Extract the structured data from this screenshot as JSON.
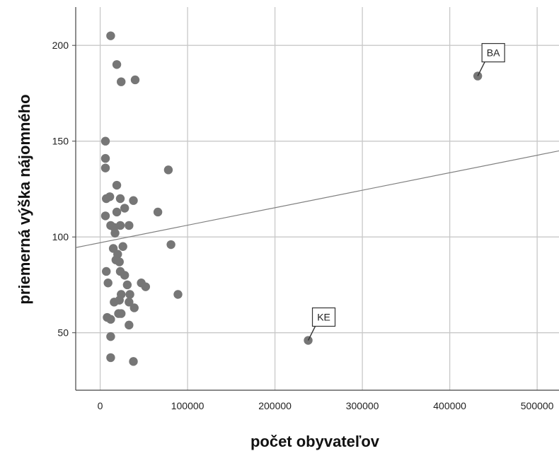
{
  "chart_data": {
    "type": "scatter",
    "xlabel": "počet obyvateľov",
    "ylabel": "priemerná výška nájomného",
    "xlim": [
      -28000,
      525000
    ],
    "ylim": [
      20,
      220
    ],
    "xticks": [
      0,
      100000,
      200000,
      300000,
      400000,
      500000
    ],
    "xtick_labels": [
      "0",
      "100000",
      "200000",
      "300000",
      "400000",
      "500000"
    ],
    "yticks": [
      50,
      100,
      150,
      200
    ],
    "ytick_labels": [
      "50",
      "100",
      "150",
      "200"
    ],
    "grid": true,
    "point_color": "#767676",
    "fit_line": {
      "intercept": 97,
      "slope": 9.13e-05
    },
    "points": [
      {
        "x": 12000,
        "y": 205
      },
      {
        "x": 19000,
        "y": 190
      },
      {
        "x": 24000,
        "y": 181
      },
      {
        "x": 40000,
        "y": 182
      },
      {
        "x": 6000,
        "y": 150
      },
      {
        "x": 6000,
        "y": 141
      },
      {
        "x": 6000,
        "y": 136
      },
      {
        "x": 19000,
        "y": 127
      },
      {
        "x": 7000,
        "y": 120
      },
      {
        "x": 11000,
        "y": 121
      },
      {
        "x": 23000,
        "y": 120
      },
      {
        "x": 19000,
        "y": 113
      },
      {
        "x": 28000,
        "y": 115
      },
      {
        "x": 38000,
        "y": 119
      },
      {
        "x": 6000,
        "y": 111
      },
      {
        "x": 12000,
        "y": 106
      },
      {
        "x": 16000,
        "y": 105
      },
      {
        "x": 23000,
        "y": 106
      },
      {
        "x": 33000,
        "y": 106
      },
      {
        "x": 17000,
        "y": 102
      },
      {
        "x": 66000,
        "y": 113
      },
      {
        "x": 78000,
        "y": 135
      },
      {
        "x": 15000,
        "y": 94
      },
      {
        "x": 26000,
        "y": 95
      },
      {
        "x": 20000,
        "y": 91
      },
      {
        "x": 18000,
        "y": 88
      },
      {
        "x": 22000,
        "y": 87
      },
      {
        "x": 81000,
        "y": 96
      },
      {
        "x": 7000,
        "y": 82
      },
      {
        "x": 23000,
        "y": 82
      },
      {
        "x": 28000,
        "y": 80
      },
      {
        "x": 9000,
        "y": 76
      },
      {
        "x": 31000,
        "y": 75
      },
      {
        "x": 47000,
        "y": 76
      },
      {
        "x": 52000,
        "y": 74
      },
      {
        "x": 24000,
        "y": 70
      },
      {
        "x": 34000,
        "y": 70
      },
      {
        "x": 89000,
        "y": 70
      },
      {
        "x": 22000,
        "y": 67
      },
      {
        "x": 16000,
        "y": 66
      },
      {
        "x": 33000,
        "y": 66
      },
      {
        "x": 39000,
        "y": 63
      },
      {
        "x": 21000,
        "y": 60
      },
      {
        "x": 24000,
        "y": 60
      },
      {
        "x": 8000,
        "y": 58
      },
      {
        "x": 12000,
        "y": 57
      },
      {
        "x": 33000,
        "y": 54
      },
      {
        "x": 12000,
        "y": 48
      },
      {
        "x": 12000,
        "y": 37
      },
      {
        "x": 38000,
        "y": 35
      },
      {
        "x": 432000,
        "y": 184,
        "label": "BA"
      },
      {
        "x": 238000,
        "y": 46,
        "label": "KE"
      }
    ]
  }
}
